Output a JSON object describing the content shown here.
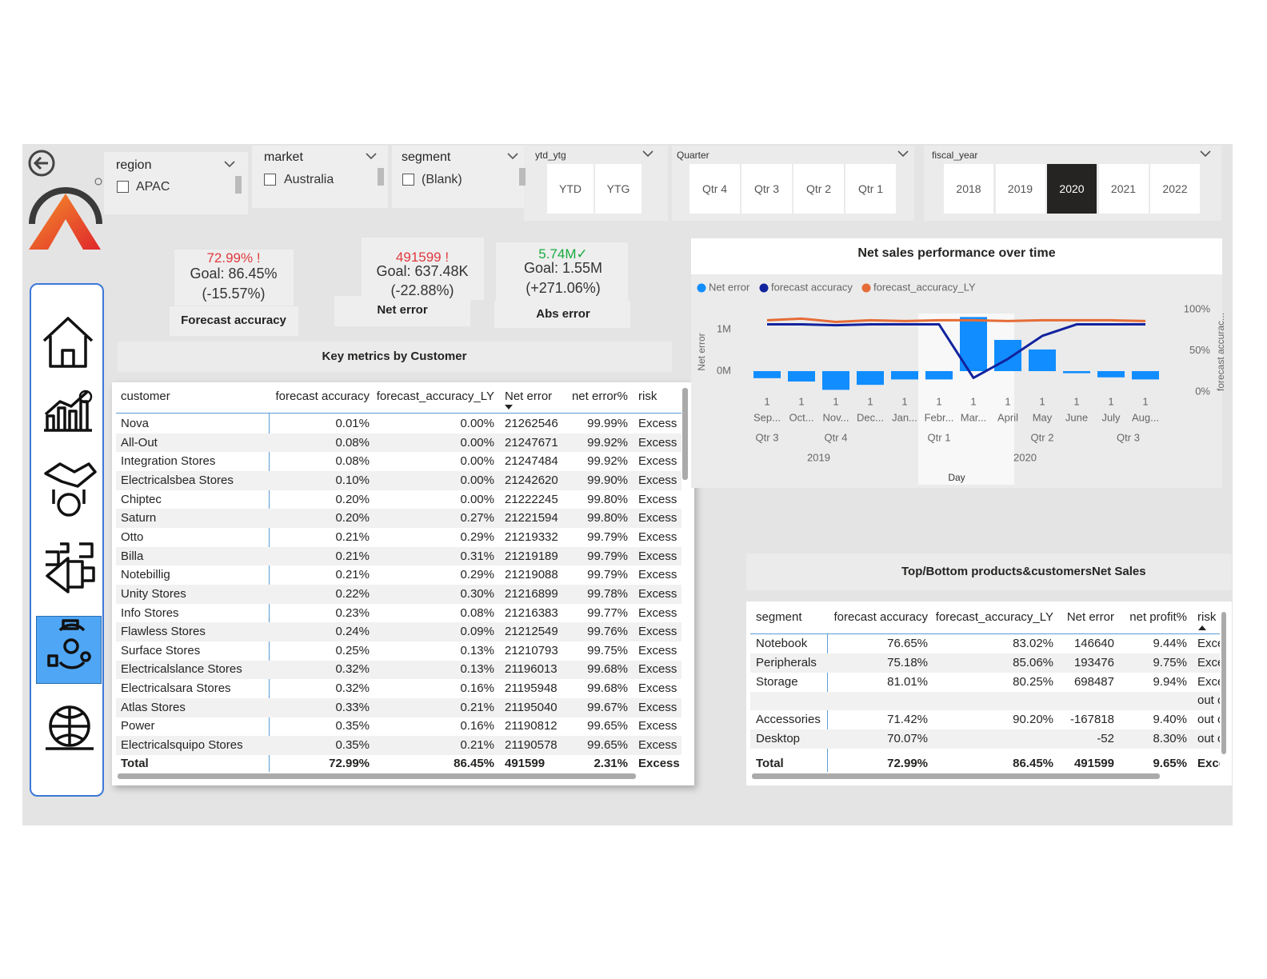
{
  "slicers": {
    "region": {
      "title": "region",
      "items": [
        "APAC"
      ]
    },
    "market": {
      "title": "market",
      "items": [
        "Australia"
      ]
    },
    "segment": {
      "title": "segment",
      "items": [
        "(Blank)"
      ]
    },
    "ytd_ytg": {
      "title": "ytd_ytg",
      "options": [
        "YTD",
        "YTG"
      ]
    },
    "quarter": {
      "title": "Quarter",
      "options": [
        "Qtr 4",
        "Qtr 3",
        "Qtr 2",
        "Qtr 1"
      ]
    },
    "fiscal_year": {
      "title": "fiscal_year",
      "options": [
        "2018",
        "2019",
        "2020",
        "2021",
        "2022"
      ],
      "selected": "2020"
    }
  },
  "kpis": [
    {
      "value": "72.99% !",
      "goal": "Goal: 86.45%",
      "delta": "(-15.57%)",
      "label": "Forecast accuracy",
      "color": "#e0393e"
    },
    {
      "value": "491599 !",
      "goal": "Goal: 637.48K",
      "delta": "(-22.88%)",
      "label": "Net error",
      "color": "#e0393e"
    },
    {
      "value": "5.74M✓",
      "goal": "Goal: 1.55M",
      "delta": "(+271.06%)",
      "label": "Abs error",
      "color": "#1aab40"
    }
  ],
  "customer_table": {
    "title": "Key metrics by Customer",
    "columns": [
      "customer",
      "forecast accuracy",
      "forecast_accuracy_LY",
      "Net error",
      "net error%",
      "risk"
    ],
    "rows": [
      [
        "Nova",
        "0.01%",
        "0.00%",
        "21262546",
        "99.99%",
        "Excess stock"
      ],
      [
        "All-Out",
        "0.08%",
        "0.00%",
        "21247671",
        "99.92%",
        "Excess stock"
      ],
      [
        "Integration Stores",
        "0.08%",
        "0.00%",
        "21247484",
        "99.92%",
        "Excess stock"
      ],
      [
        "Electricalsbea Stores",
        "0.10%",
        "0.00%",
        "21242620",
        "99.90%",
        "Excess stock"
      ],
      [
        "Chiptec",
        "0.20%",
        "0.00%",
        "21222245",
        "99.80%",
        "Excess stock"
      ],
      [
        "Saturn",
        "0.20%",
        "0.27%",
        "21221594",
        "99.80%",
        "Excess stock"
      ],
      [
        "Otto",
        "0.21%",
        "0.29%",
        "21219332",
        "99.79%",
        "Excess stock"
      ],
      [
        "Billa",
        "0.21%",
        "0.31%",
        "21219189",
        "99.79%",
        "Excess stock"
      ],
      [
        "Notebillig",
        "0.21%",
        "0.29%",
        "21219088",
        "99.79%",
        "Excess stock"
      ],
      [
        "Unity Stores",
        "0.22%",
        "0.30%",
        "21216899",
        "99.78%",
        "Excess stock"
      ],
      [
        "Info Stores",
        "0.23%",
        "0.08%",
        "21216383",
        "99.77%",
        "Excess stock"
      ],
      [
        "Flawless Stores",
        "0.24%",
        "0.09%",
        "21212549",
        "99.76%",
        "Excess stock"
      ],
      [
        "Surface Stores",
        "0.25%",
        "0.13%",
        "21210793",
        "99.75%",
        "Excess stock"
      ],
      [
        "Electricalslance Stores",
        "0.32%",
        "0.13%",
        "21196013",
        "99.68%",
        "Excess stock"
      ],
      [
        "Electricalsara Stores",
        "0.32%",
        "0.16%",
        "21195948",
        "99.68%",
        "Excess stock"
      ],
      [
        "Atlas Stores",
        "0.33%",
        "0.21%",
        "21195040",
        "99.67%",
        "Excess stock"
      ],
      [
        "Power",
        "0.35%",
        "0.16%",
        "21190812",
        "99.65%",
        "Excess stock"
      ],
      [
        "Electricalsquipo Stores",
        "0.35%",
        "0.21%",
        "21190578",
        "99.65%",
        "Excess stock"
      ]
    ],
    "total": [
      "Total",
      "72.99%",
      "86.45%",
      "491599",
      "2.31%",
      "Excess stock"
    ]
  },
  "segment_table": {
    "title": "Top/Bottom products&customersNet Sales",
    "columns": [
      "segment",
      "forecast accuracy",
      "forecast_accuracy_LY",
      "Net error",
      "net profit%",
      "risk"
    ],
    "rows": [
      [
        "Notebook",
        "76.65%",
        "83.02%",
        "146640",
        "9.44%",
        "Excess stock"
      ],
      [
        "Peripherals",
        "75.18%",
        "85.06%",
        "193476",
        "9.75%",
        "Excess stock"
      ],
      [
        "Storage",
        "81.01%",
        "80.25%",
        "698487",
        "9.94%",
        "Excess stock"
      ],
      [
        null,
        null,
        null,
        null,
        null,
        "out of stock"
      ],
      [
        "Accessories",
        "71.42%",
        "90.20%",
        "-167818",
        "9.40%",
        "out of stock"
      ],
      [
        "Desktop",
        "70.07%",
        null,
        "-52",
        "8.30%",
        "out of stock"
      ]
    ],
    "total": [
      "Total",
      "72.99%",
      "86.45%",
      "491599",
      "9.65%",
      "Excess stock"
    ]
  },
  "chart_data": {
    "type": "bar-line",
    "title": "Net sales performance over time",
    "x_label": "Day",
    "y_label": "Net error",
    "y2_label": "forecast accurac...",
    "days": [
      "1",
      "1",
      "1",
      "1",
      "1",
      "1",
      "1",
      "1",
      "1",
      "1",
      "1",
      "1"
    ],
    "categories": [
      "Sep...",
      "Oct...",
      "Nov...",
      "Dec...",
      "Jan...",
      "Febr...",
      "Mar...",
      "April",
      "May",
      "June",
      "July",
      "Aug..."
    ],
    "quarters": [
      "Qtr 3",
      "Qtr 4",
      "Qtr 4",
      "Qtr 4",
      "Qtr 1",
      "Qtr 1",
      "Qtr 1",
      "Qtr 2",
      "Qtr 2",
      "Qtr 2",
      "Qtr 3",
      "Qtr 3"
    ],
    "years": [
      "2019",
      "2019",
      "2019",
      "2019",
      "2020",
      "2020",
      "2020",
      "2020",
      "2020",
      "2020",
      "2020",
      "2020"
    ],
    "series": [
      {
        "name": "Net error",
        "color": "#118dff",
        "type": "bar",
        "values": [
          -170000,
          -250000,
          -450000,
          -330000,
          -200000,
          -200000,
          1300000,
          750000,
          520000,
          -50000,
          -150000,
          -200000
        ]
      },
      {
        "name": "forecast accuracy",
        "color": "#12239e",
        "type": "line",
        "axis": "y2",
        "values": [
          82,
          82,
          81,
          82,
          82,
          82,
          17,
          40,
          68,
          82,
          82,
          82
        ]
      },
      {
        "name": "forecast_accuracy_LY",
        "color": "#e66c37",
        "type": "line",
        "axis": "y2",
        "values": [
          87,
          89,
          85,
          87,
          86,
          87,
          87,
          86,
          87,
          87,
          87,
          86
        ]
      }
    ],
    "ylim": [
      -500000,
      1480000
    ],
    "yticks": [
      {
        "value": 0,
        "label": "0M"
      },
      {
        "value": 1000000,
        "label": "1M"
      }
    ],
    "y2lim": [
      0,
      100
    ],
    "y2ticks": [
      {
        "value": 0,
        "label": "0%"
      },
      {
        "value": 50,
        "label": "50%"
      },
      {
        "value": 100,
        "label": "100%"
      }
    ],
    "grid": false
  }
}
